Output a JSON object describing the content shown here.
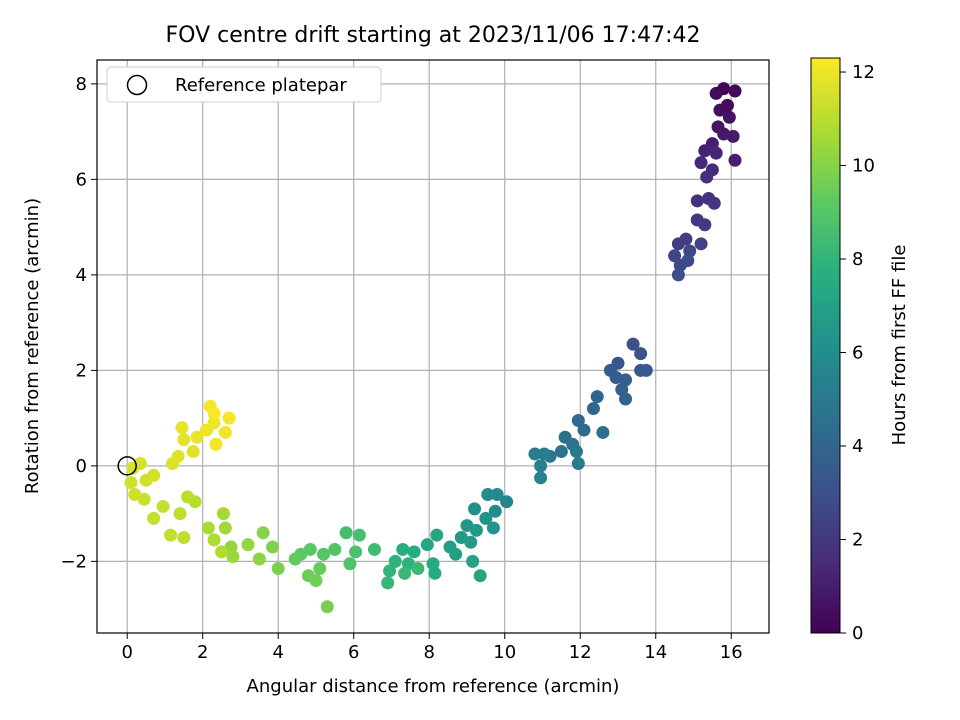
{
  "chart_data": {
    "type": "scatter",
    "title": "FOV centre drift starting at 2023/11/06 17:47:42",
    "xlabel": "Angular distance from reference (arcmin)",
    "ylabel": "Rotation from reference (arcmin)",
    "xlim": [
      -0.8,
      17.0
    ],
    "ylim": [
      -3.5,
      8.5
    ],
    "xticks": [
      0,
      2,
      4,
      6,
      8,
      10,
      12,
      14,
      16
    ],
    "yticks": [
      -2,
      0,
      2,
      4,
      6,
      8
    ],
    "grid": true,
    "legend": {
      "placement": "top-left",
      "entries": [
        "Reference platepar"
      ]
    },
    "reference_point": {
      "x": 0,
      "y": 0,
      "label": "Reference platepar"
    },
    "colorbar": {
      "label": "Hours from first FF file",
      "colormap": "viridis",
      "range": [
        0,
        12.3
      ],
      "ticks": [
        0,
        2,
        4,
        6,
        8,
        10,
        12
      ]
    },
    "series": [
      {
        "name": "FOV centre samples",
        "color_by": "hours",
        "points": [
          {
            "x": 15.8,
            "y": 7.9,
            "hours": 0.1
          },
          {
            "x": 16.1,
            "y": 7.85,
            "hours": 0.2
          },
          {
            "x": 15.6,
            "y": 7.8,
            "hours": 0.3
          },
          {
            "x": 15.9,
            "y": 7.55,
            "hours": 0.4
          },
          {
            "x": 15.7,
            "y": 7.45,
            "hours": 0.5
          },
          {
            "x": 15.95,
            "y": 7.3,
            "hours": 0.6
          },
          {
            "x": 15.65,
            "y": 7.1,
            "hours": 0.7
          },
          {
            "x": 15.8,
            "y": 6.95,
            "hours": 0.8
          },
          {
            "x": 16.05,
            "y": 6.9,
            "hours": 0.9
          },
          {
            "x": 16.1,
            "y": 6.4,
            "hours": 1.0
          },
          {
            "x": 15.5,
            "y": 6.75,
            "hours": 1.1
          },
          {
            "x": 15.3,
            "y": 6.6,
            "hours": 1.2
          },
          {
            "x": 15.6,
            "y": 6.55,
            "hours": 1.3
          },
          {
            "x": 15.2,
            "y": 6.35,
            "hours": 1.4
          },
          {
            "x": 15.5,
            "y": 6.2,
            "hours": 1.5
          },
          {
            "x": 15.35,
            "y": 6.05,
            "hours": 1.6
          },
          {
            "x": 15.1,
            "y": 5.55,
            "hours": 1.7
          },
          {
            "x": 15.4,
            "y": 5.6,
            "hours": 1.8
          },
          {
            "x": 15.55,
            "y": 5.5,
            "hours": 1.9
          },
          {
            "x": 15.1,
            "y": 5.15,
            "hours": 2.0
          },
          {
            "x": 15.3,
            "y": 5.05,
            "hours": 2.1
          },
          {
            "x": 14.6,
            "y": 4.65,
            "hours": 2.2
          },
          {
            "x": 14.8,
            "y": 4.75,
            "hours": 2.3
          },
          {
            "x": 15.2,
            "y": 4.65,
            "hours": 2.4
          },
          {
            "x": 14.5,
            "y": 4.4,
            "hours": 2.5
          },
          {
            "x": 14.9,
            "y": 4.5,
            "hours": 2.6
          },
          {
            "x": 14.65,
            "y": 4.2,
            "hours": 2.7
          },
          {
            "x": 14.85,
            "y": 4.3,
            "hours": 2.8
          },
          {
            "x": 14.6,
            "y": 4.0,
            "hours": 2.9
          },
          {
            "x": 13.4,
            "y": 2.55,
            "hours": 3.0
          },
          {
            "x": 13.6,
            "y": 2.35,
            "hours": 3.1
          },
          {
            "x": 13.0,
            "y": 2.15,
            "hours": 3.2
          },
          {
            "x": 13.6,
            "y": 2.0,
            "hours": 3.3
          },
          {
            "x": 13.75,
            "y": 2.0,
            "hours": 3.4
          },
          {
            "x": 12.8,
            "y": 2.0,
            "hours": 3.5
          },
          {
            "x": 12.95,
            "y": 1.85,
            "hours": 3.6
          },
          {
            "x": 13.2,
            "y": 1.8,
            "hours": 3.7
          },
          {
            "x": 13.1,
            "y": 1.6,
            "hours": 3.8
          },
          {
            "x": 13.2,
            "y": 1.4,
            "hours": 3.9
          },
          {
            "x": 12.45,
            "y": 1.45,
            "hours": 4.0
          },
          {
            "x": 12.35,
            "y": 1.2,
            "hours": 4.1
          },
          {
            "x": 11.95,
            "y": 0.95,
            "hours": 4.2
          },
          {
            "x": 12.1,
            "y": 0.75,
            "hours": 4.3
          },
          {
            "x": 12.6,
            "y": 0.7,
            "hours": 4.4
          },
          {
            "x": 11.6,
            "y": 0.6,
            "hours": 4.5
          },
          {
            "x": 11.8,
            "y": 0.45,
            "hours": 4.6
          },
          {
            "x": 11.5,
            "y": 0.3,
            "hours": 4.7
          },
          {
            "x": 11.2,
            "y": 0.2,
            "hours": 4.8
          },
          {
            "x": 11.9,
            "y": 0.3,
            "hours": 4.9
          },
          {
            "x": 11.95,
            "y": 0.05,
            "hours": 5.0
          },
          {
            "x": 10.8,
            "y": 0.25,
            "hours": 5.1
          },
          {
            "x": 11.05,
            "y": 0.25,
            "hours": 5.2
          },
          {
            "x": 10.95,
            "y": 0.0,
            "hours": 5.3
          },
          {
            "x": 10.95,
            "y": -0.25,
            "hours": 5.4
          },
          {
            "x": 10.05,
            "y": -0.75,
            "hours": 5.6
          },
          {
            "x": 9.8,
            "y": -0.6,
            "hours": 5.8
          },
          {
            "x": 9.55,
            "y": -0.6,
            "hours": 5.9
          },
          {
            "x": 9.75,
            "y": -0.95,
            "hours": 6.0
          },
          {
            "x": 9.2,
            "y": -0.9,
            "hours": 6.1
          },
          {
            "x": 9.5,
            "y": -1.1,
            "hours": 6.2
          },
          {
            "x": 9.7,
            "y": -1.3,
            "hours": 6.3
          },
          {
            "x": 9.0,
            "y": -1.25,
            "hours": 6.4
          },
          {
            "x": 9.25,
            "y": -1.35,
            "hours": 6.5
          },
          {
            "x": 8.85,
            "y": -1.5,
            "hours": 6.6
          },
          {
            "x": 9.1,
            "y": -1.6,
            "hours": 6.7
          },
          {
            "x": 8.55,
            "y": -1.7,
            "hours": 6.8
          },
          {
            "x": 8.7,
            "y": -1.85,
            "hours": 6.9
          },
          {
            "x": 9.15,
            "y": -2.0,
            "hours": 7.0
          },
          {
            "x": 9.35,
            "y": -2.3,
            "hours": 7.1
          },
          {
            "x": 8.2,
            "y": -1.45,
            "hours": 7.2
          },
          {
            "x": 7.95,
            "y": -1.65,
            "hours": 7.3
          },
          {
            "x": 8.1,
            "y": -2.05,
            "hours": 7.4
          },
          {
            "x": 8.15,
            "y": -2.25,
            "hours": 7.5
          },
          {
            "x": 7.6,
            "y": -1.8,
            "hours": 7.6
          },
          {
            "x": 7.3,
            "y": -1.75,
            "hours": 7.7
          },
          {
            "x": 7.45,
            "y": -2.05,
            "hours": 7.8
          },
          {
            "x": 7.1,
            "y": -2.0,
            "hours": 7.9
          },
          {
            "x": 6.95,
            "y": -2.2,
            "hours": 8.0
          },
          {
            "x": 6.9,
            "y": -2.45,
            "hours": 8.1
          },
          {
            "x": 7.35,
            "y": -2.25,
            "hours": 8.2
          },
          {
            "x": 7.7,
            "y": -2.15,
            "hours": 8.3
          },
          {
            "x": 6.55,
            "y": -1.75,
            "hours": 8.4
          },
          {
            "x": 5.8,
            "y": -1.4,
            "hours": 8.5
          },
          {
            "x": 6.15,
            "y": -1.45,
            "hours": 8.6
          },
          {
            "x": 6.05,
            "y": -1.8,
            "hours": 8.7
          },
          {
            "x": 5.9,
            "y": -2.05,
            "hours": 8.8
          },
          {
            "x": 5.5,
            "y": -1.75,
            "hours": 8.9
          },
          {
            "x": 5.2,
            "y": -1.85,
            "hours": 9.0
          },
          {
            "x": 4.85,
            "y": -1.75,
            "hours": 9.1
          },
          {
            "x": 4.6,
            "y": -1.85,
            "hours": 9.2
          },
          {
            "x": 4.45,
            "y": -1.95,
            "hours": 9.3
          },
          {
            "x": 5.1,
            "y": -2.15,
            "hours": 9.4
          },
          {
            "x": 4.8,
            "y": -2.3,
            "hours": 9.5
          },
          {
            "x": 5.0,
            "y": -2.4,
            "hours": 9.6
          },
          {
            "x": 5.3,
            "y": -2.95,
            "hours": 9.7
          },
          {
            "x": 4.0,
            "y": -2.15,
            "hours": 9.8
          },
          {
            "x": 3.85,
            "y": -1.7,
            "hours": 9.9
          },
          {
            "x": 3.6,
            "y": -1.4,
            "hours": 10.0
          },
          {
            "x": 3.5,
            "y": -1.95,
            "hours": 10.1
          },
          {
            "x": 3.2,
            "y": -1.65,
            "hours": 10.2
          },
          {
            "x": 2.75,
            "y": -1.7,
            "hours": 10.3
          },
          {
            "x": 2.8,
            "y": -1.9,
            "hours": 10.4
          },
          {
            "x": 2.6,
            "y": -1.3,
            "hours": 10.5
          },
          {
            "x": 2.55,
            "y": -1.0,
            "hours": 10.6
          },
          {
            "x": 2.15,
            "y": -1.3,
            "hours": 10.7
          },
          {
            "x": 2.3,
            "y": -1.55,
            "hours": 10.8
          },
          {
            "x": 2.5,
            "y": -1.8,
            "hours": 10.85
          },
          {
            "x": 1.8,
            "y": -0.75,
            "hours": 10.9
          },
          {
            "x": 1.6,
            "y": -0.65,
            "hours": 11.0
          },
          {
            "x": 1.4,
            "y": -1.0,
            "hours": 11.05
          },
          {
            "x": 1.5,
            "y": -1.5,
            "hours": 11.1
          },
          {
            "x": 1.15,
            "y": -1.45,
            "hours": 11.15
          },
          {
            "x": 0.95,
            "y": -0.85,
            "hours": 11.2
          },
          {
            "x": 0.7,
            "y": -1.1,
            "hours": 11.25
          },
          {
            "x": 0.45,
            "y": -0.7,
            "hours": 11.3
          },
          {
            "x": 0.2,
            "y": -0.6,
            "hours": 11.35
          },
          {
            "x": 0.1,
            "y": -0.35,
            "hours": 11.4
          },
          {
            "x": 0.5,
            "y": -0.3,
            "hours": 11.45
          },
          {
            "x": 0.7,
            "y": -0.2,
            "hours": 11.5
          },
          {
            "x": 0.35,
            "y": 0.05,
            "hours": 11.55
          },
          {
            "x": 0.15,
            "y": -0.05,
            "hours": 11.6
          },
          {
            "x": 1.2,
            "y": 0.05,
            "hours": 11.65
          },
          {
            "x": 1.35,
            "y": 0.2,
            "hours": 11.7
          },
          {
            "x": 1.75,
            "y": 0.3,
            "hours": 11.75
          },
          {
            "x": 1.5,
            "y": 0.55,
            "hours": 11.8
          },
          {
            "x": 1.45,
            "y": 0.8,
            "hours": 11.85
          },
          {
            "x": 1.85,
            "y": 0.6,
            "hours": 11.9
          },
          {
            "x": 2.1,
            "y": 0.75,
            "hours": 11.95
          },
          {
            "x": 2.3,
            "y": 0.9,
            "hours": 12.0
          },
          {
            "x": 2.6,
            "y": 0.7,
            "hours": 12.05
          },
          {
            "x": 2.35,
            "y": 0.45,
            "hours": 12.1
          },
          {
            "x": 2.7,
            "y": 1.0,
            "hours": 12.15
          },
          {
            "x": 2.2,
            "y": 1.25,
            "hours": 12.2
          },
          {
            "x": 2.3,
            "y": 1.1,
            "hours": 12.25
          }
        ]
      }
    ]
  }
}
